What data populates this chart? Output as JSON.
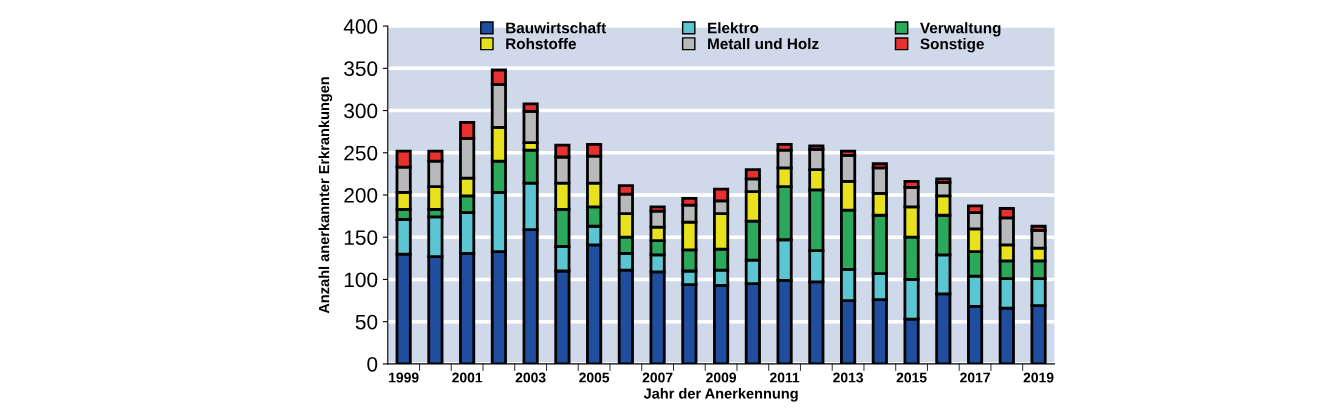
{
  "chart_data": {
    "type": "bar",
    "stacked": true,
    "xlabel": "Jahr der Anerkennung",
    "ylabel": "Anzahl anerkannter Erkrankungen",
    "categories": [
      "1999",
      null,
      "2001",
      null,
      "2003",
      null,
      "2005",
      null,
      "2007",
      null,
      "2009",
      null,
      "2011",
      null,
      "2013",
      null,
      "2015",
      null,
      "2017",
      null,
      "2019"
    ],
    "series": [
      {
        "name": "Bauwirtschaft",
        "color": "#1f4e9e",
        "values": [
          130,
          127,
          131,
          133,
          159,
          110,
          141,
          111,
          109,
          94,
          93,
          95,
          99,
          97,
          75,
          76,
          53,
          83,
          68,
          66,
          69
        ]
      },
      {
        "name": "Elektro",
        "color": "#5bc5d2",
        "values": [
          41,
          47,
          48,
          70,
          55,
          29,
          22,
          20,
          20,
          16,
          18,
          28,
          48,
          37,
          37,
          31,
          47,
          46,
          36,
          35,
          32
        ]
      },
      {
        "name": "Verwaltung",
        "color": "#2ca85a",
        "values": [
          12,
          9,
          20,
          37,
          39,
          44,
          23,
          19,
          17,
          25,
          25,
          46,
          63,
          72,
          70,
          69,
          50,
          47,
          29,
          21,
          21
        ]
      },
      {
        "name": "Rohstoffe",
        "color": "#e8e21e",
        "values": [
          20,
          27,
          21,
          40,
          9,
          31,
          28,
          28,
          16,
          33,
          42,
          35,
          22,
          24,
          34,
          26,
          36,
          23,
          27,
          19,
          15
        ]
      },
      {
        "name": "Metall und Holz",
        "color": "#b8b9ba",
        "values": [
          30,
          30,
          47,
          51,
          37,
          31,
          32,
          23,
          19,
          20,
          15,
          15,
          21,
          24,
          31,
          30,
          23,
          16,
          19,
          32,
          21
        ]
      },
      {
        "name": "Sonstige",
        "color": "#e8302e",
        "values": [
          19,
          12,
          19,
          17,
          9,
          14,
          14,
          10,
          5,
          8,
          14,
          11,
          7,
          4,
          5,
          5,
          7,
          4,
          8,
          11,
          5
        ]
      }
    ],
    "ylim": [
      0,
      400
    ],
    "yticks": [
      0,
      50,
      100,
      150,
      200,
      250,
      300,
      350,
      400
    ],
    "grid": "y",
    "legend": "top"
  }
}
